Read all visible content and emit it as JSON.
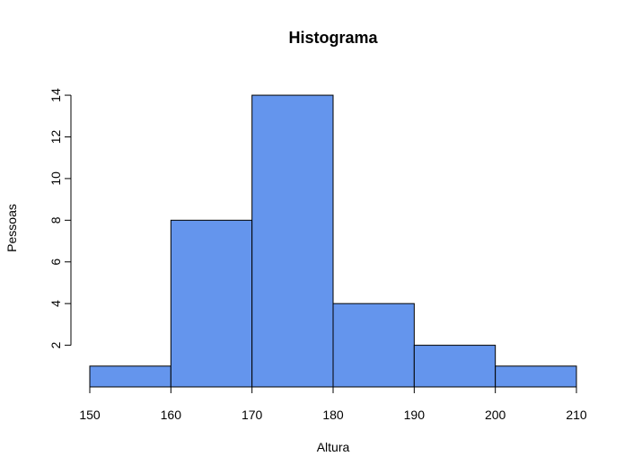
{
  "chart_data": {
    "type": "bar",
    "title": "Histograma",
    "xlabel": "Altura",
    "ylabel": "Pessoas",
    "bins": [
      {
        "start": 150,
        "end": 160,
        "count": 1
      },
      {
        "start": 160,
        "end": 170,
        "count": 8
      },
      {
        "start": 170,
        "end": 180,
        "count": 14
      },
      {
        "start": 180,
        "end": 190,
        "count": 4
      },
      {
        "start": 190,
        "end": 200,
        "count": 2
      },
      {
        "start": 200,
        "end": 210,
        "count": 1
      }
    ],
    "x_ticks": [
      150,
      160,
      170,
      180,
      190,
      200,
      210
    ],
    "y_ticks": [
      2,
      4,
      6,
      8,
      10,
      12,
      14
    ],
    "xlim": [
      150,
      210
    ],
    "ylim": [
      0,
      14
    ],
    "grid": false,
    "bar_color": "#6495ed",
    "edge_color": "#000000"
  }
}
